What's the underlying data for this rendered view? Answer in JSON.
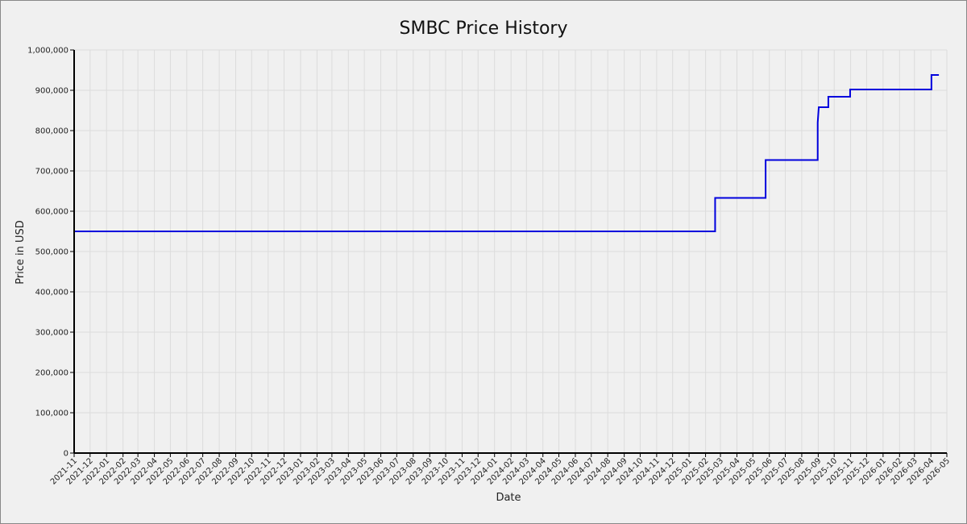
{
  "chart_data": {
    "type": "line",
    "title": "SMBC Price History",
    "xlabel": "Date",
    "ylabel": "Price in USD",
    "x_ticks": [
      "2021-11",
      "2021-12",
      "2022-01",
      "2022-02",
      "2022-03",
      "2022-04",
      "2022-05",
      "2022-06",
      "2022-07",
      "2022-08",
      "2022-09",
      "2022-10",
      "2022-11",
      "2022-12",
      "2023-01",
      "2023-02",
      "2023-03",
      "2023-04",
      "2023-05",
      "2023-06",
      "2023-07",
      "2023-08",
      "2023-09",
      "2023-10",
      "2023-11",
      "2023-12",
      "2024-01",
      "2024-02",
      "2024-03",
      "2024-04",
      "2024-05",
      "2024-06",
      "2024-07",
      "2024-08",
      "2024-09",
      "2024-10",
      "2024-11",
      "2024-12",
      "2025-01",
      "2025-02",
      "2025-03",
      "2025-04",
      "2025-05",
      "2025-06",
      "2025-07",
      "2025-08",
      "2025-09",
      "2025-10",
      "2025-11",
      "2025-12",
      "2026-01",
      "2026-02",
      "2026-03",
      "2026-04",
      "2026-05"
    ],
    "y_ticks": [
      "0",
      "100,000",
      "200,000",
      "300,000",
      "400,000",
      "500,000",
      "600,000",
      "700,000",
      "800,000",
      "900,000",
      "1,000,000"
    ],
    "ylim": [
      0,
      1000000
    ],
    "grid": true,
    "line_color": "#0000dd",
    "series": [
      {
        "x": [
          "2021-11-01",
          "2025-02-19",
          "2025-02-19",
          "2025-05-25",
          "2025-05-25",
          "2025-08-31",
          "2025-08-31",
          "2025-09-02",
          "2025-09-02",
          "2025-09-20",
          "2025-09-20",
          "2025-10-31",
          "2025-10-31",
          "2026-04-02",
          "2026-04-02",
          "2026-04-16"
        ],
        "y": [
          550000,
          550000,
          633000,
          633000,
          727000,
          727000,
          820000,
          858000,
          858000,
          858000,
          884000,
          884000,
          902000,
          902000,
          938000,
          938000
        ]
      }
    ]
  }
}
